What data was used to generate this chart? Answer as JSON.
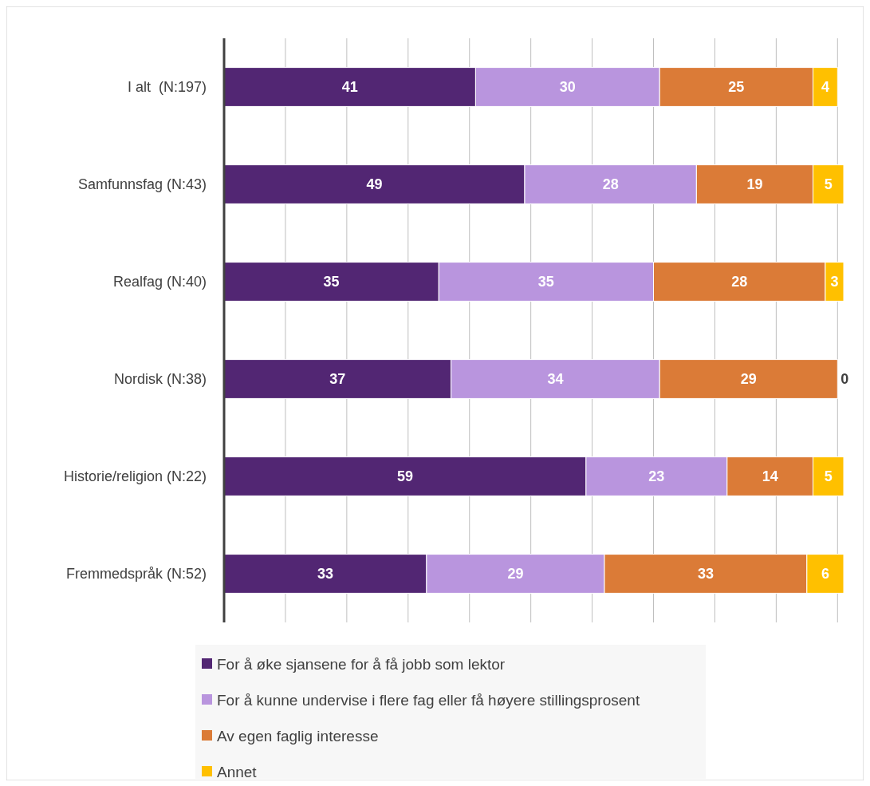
{
  "chart_data": {
    "type": "bar",
    "orientation": "horizontal",
    "stacked": true,
    "data_labels": true,
    "grid": "x",
    "legend": "bottom",
    "categories": [
      "I alt  (N:197)",
      "Samfunnsfag (N:43)",
      "Realfag (N:40)",
      "Nordisk (N:38)",
      "Historie/religion (N:22)",
      "Fremmedspråk (N:52)"
    ],
    "xlim": [
      0,
      101
    ],
    "xticks": [
      {
        "value": 0,
        "label": null
      },
      {
        "value": 10,
        "label": null
      },
      {
        "value": 20,
        "label": null
      },
      {
        "value": 30,
        "label": null
      },
      {
        "value": 40,
        "label": null
      },
      {
        "value": 50,
        "label": null
      },
      {
        "value": 60,
        "label": null
      },
      {
        "value": 70,
        "label": null
      },
      {
        "value": 80,
        "label": null
      },
      {
        "value": 90,
        "label": null
      },
      {
        "value": 100,
        "label": null
      }
    ],
    "series": [
      {
        "name": "For å øke sjansene for å få jobb som lektor",
        "color": "#522673",
        "values": [
          41,
          49,
          35,
          37,
          59,
          33
        ]
      },
      {
        "name": "For å kunne undervise i flere fag eller få høyere stillingsprosent",
        "color": "#b995de",
        "values": [
          30,
          28,
          35,
          34,
          23,
          29
        ]
      },
      {
        "name": "Av egen faglig interesse",
        "color": "#db7b37",
        "values": [
          25,
          19,
          28,
          29,
          14,
          33
        ]
      },
      {
        "name": "Annet",
        "color": "#ffc000",
        "values": [
          4,
          5,
          3,
          0,
          5,
          6
        ]
      }
    ]
  }
}
